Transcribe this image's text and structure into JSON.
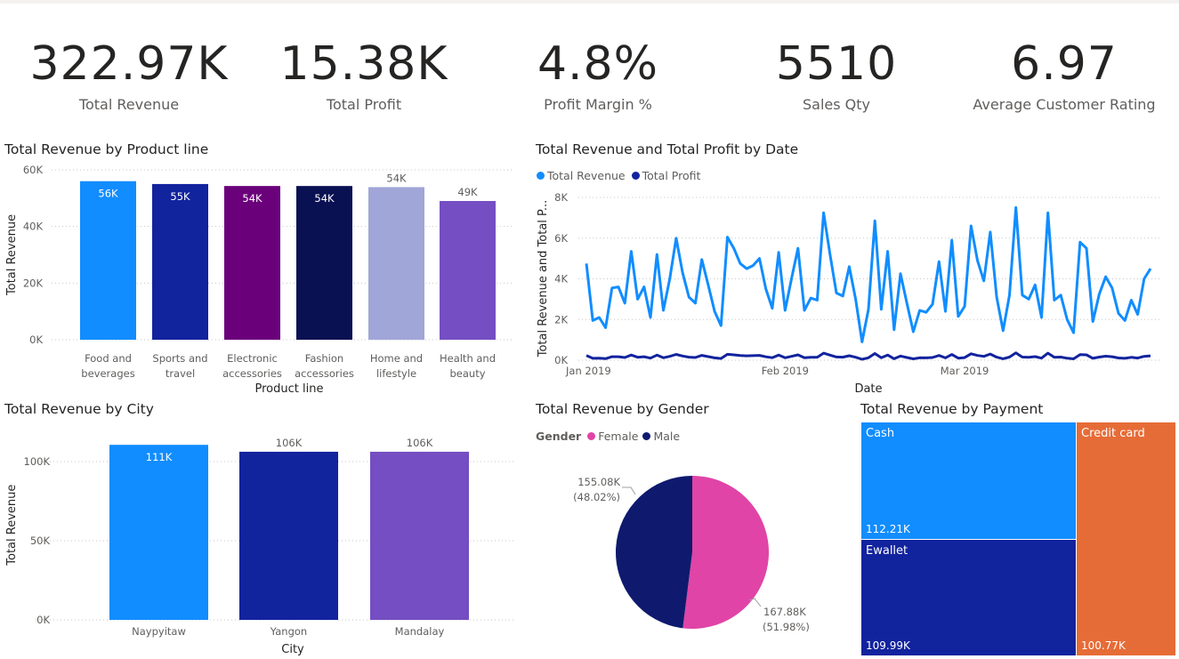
{
  "kpis": [
    {
      "value": "322.97K",
      "label": "Total Revenue"
    },
    {
      "value": "15.38K",
      "label": "Total Profit"
    },
    {
      "value": "4.8%",
      "label": "Profit Margin %"
    },
    {
      "value": "5510",
      "label": "Sales Qty"
    },
    {
      "value": "6.97",
      "label": "Average Customer Rating"
    }
  ],
  "chart_data": [
    {
      "id": "product",
      "type": "bar",
      "title": "Total Revenue by Product line",
      "xlabel": "Product line",
      "ylabel": "Total Revenue",
      "ylim": [
        0,
        60000
      ],
      "yticks": [
        "0K",
        "20K",
        "40K",
        "60K"
      ],
      "grid": true,
      "categories": [
        "Food and beverages",
        "Sports and travel",
        "Electronic accessories",
        "Fashion accessories",
        "Home and lifestyle",
        "Health and beauty"
      ],
      "values": [
        56000,
        55000,
        54300,
        54300,
        53900,
        49000
      ],
      "labels": [
        "56K",
        "55K",
        "54K",
        "54K",
        "54K",
        "49K"
      ],
      "colors": [
        "#118DFF",
        "#12239E",
        "#6B007B",
        "#0A1152",
        "#A1A6D8",
        "#744EC2"
      ]
    },
    {
      "id": "date",
      "type": "line",
      "title": "Total Revenue and Total Profit by Date",
      "xlabel": "Date",
      "ylabel": "Total Revenue and Total P...",
      "ylim": [
        0,
        8000
      ],
      "yticks": [
        "0K",
        "2K",
        "4K",
        "6K",
        "8K"
      ],
      "grid": true,
      "xticks": [
        {
          "date": "2019-01-01",
          "label": "Jan 2019"
        },
        {
          "date": "2019-02-01",
          "label": "Feb 2019"
        },
        {
          "date": "2019-03-01",
          "label": "Mar 2019"
        }
      ],
      "legend": "top-left",
      "x": [
        "2019-01-01",
        "2019-01-02",
        "2019-01-03",
        "2019-01-04",
        "2019-01-05",
        "2019-01-06",
        "2019-01-07",
        "2019-01-08",
        "2019-01-09",
        "2019-01-10",
        "2019-01-11",
        "2019-01-12",
        "2019-01-13",
        "2019-01-14",
        "2019-01-15",
        "2019-01-16",
        "2019-01-17",
        "2019-01-18",
        "2019-01-19",
        "2019-01-20",
        "2019-01-21",
        "2019-01-22",
        "2019-01-23",
        "2019-01-24",
        "2019-01-25",
        "2019-01-26",
        "2019-01-27",
        "2019-01-28",
        "2019-01-29",
        "2019-01-30",
        "2019-01-31",
        "2019-02-01",
        "2019-02-02",
        "2019-02-03",
        "2019-02-04",
        "2019-02-05",
        "2019-02-06",
        "2019-02-07",
        "2019-02-08",
        "2019-02-09",
        "2019-02-10",
        "2019-02-11",
        "2019-02-12",
        "2019-02-13",
        "2019-02-14",
        "2019-02-15",
        "2019-02-16",
        "2019-02-17",
        "2019-02-18",
        "2019-02-19",
        "2019-02-20",
        "2019-02-21",
        "2019-02-22",
        "2019-02-23",
        "2019-02-24",
        "2019-02-25",
        "2019-02-26",
        "2019-02-27",
        "2019-02-28",
        "2019-03-01",
        "2019-03-02",
        "2019-03-03",
        "2019-03-04",
        "2019-03-05",
        "2019-03-06",
        "2019-03-07",
        "2019-03-08",
        "2019-03-09",
        "2019-03-10",
        "2019-03-11",
        "2019-03-12",
        "2019-03-13",
        "2019-03-14",
        "2019-03-15",
        "2019-03-16",
        "2019-03-17",
        "2019-03-18",
        "2019-03-19",
        "2019-03-20",
        "2019-03-21",
        "2019-03-22",
        "2019-03-23",
        "2019-03-24",
        "2019-03-25",
        "2019-03-26",
        "2019-03-27",
        "2019-03-28",
        "2019-03-29",
        "2019-03-30"
      ],
      "series": [
        {
          "name": "Total Revenue",
          "color": "#118DFF",
          "values": [
            4750,
            1950,
            2100,
            1600,
            3550,
            3600,
            2800,
            5350,
            3000,
            3600,
            2100,
            5200,
            2450,
            4000,
            6000,
            4300,
            3100,
            2800,
            4950,
            3700,
            2400,
            1700,
            6050,
            5500,
            4750,
            4500,
            4650,
            5000,
            3500,
            2550,
            5300,
            2450,
            4000,
            5500,
            2450,
            3050,
            2950,
            7250,
            5200,
            3300,
            3150,
            4600,
            3000,
            900,
            2500,
            6850,
            2500,
            5350,
            1500,
            4250,
            2800,
            1400,
            2450,
            2350,
            2750,
            4850,
            2400,
            5900,
            2150,
            2650,
            6600,
            4900,
            3900,
            6300,
            3100,
            1450,
            3200,
            7500,
            3200,
            3000,
            3700,
            2100,
            7250,
            2950,
            3200,
            2000,
            1350,
            5800,
            5500,
            1900,
            3250,
            4100,
            3550,
            2300,
            1950,
            2950,
            2250,
            4000,
            4500
          ]
        },
        {
          "name": "Total Profit",
          "color": "#12239E",
          "values": [
            226,
            93,
            100,
            76,
            169,
            171,
            133,
            255,
            143,
            171,
            100,
            248,
            117,
            190,
            286,
            205,
            148,
            133,
            236,
            176,
            114,
            81,
            288,
            262,
            226,
            214,
            221,
            238,
            167,
            121,
            252,
            117,
            190,
            262,
            117,
            145,
            140,
            345,
            248,
            157,
            150,
            219,
            143,
            43,
            119,
            326,
            119,
            255,
            71,
            202,
            133,
            67,
            117,
            112,
            131,
            231,
            114,
            281,
            102,
            126,
            314,
            233,
            186,
            300,
            148,
            69,
            152,
            357,
            152,
            143,
            176,
            100,
            345,
            140,
            152,
            95,
            64,
            276,
            262,
            90,
            155,
            195,
            169,
            109,
            93,
            140,
            107,
            190,
            214
          ]
        }
      ]
    },
    {
      "id": "city",
      "type": "bar",
      "title": "Total Revenue by City",
      "xlabel": "City",
      "ylabel": "Total Revenue",
      "ylim": [
        0,
        120000
      ],
      "yticks": [
        "0K",
        "50K",
        "100K"
      ],
      "grid": true,
      "categories": [
        "Naypyitaw",
        "Yangon",
        "Mandalay"
      ],
      "values": [
        110570,
        106200,
        106200
      ],
      "labels": [
        "111K",
        "106K",
        "106K"
      ],
      "colors": [
        "#118DFF",
        "#12239E",
        "#744EC2"
      ]
    },
    {
      "id": "gender",
      "type": "pie",
      "title": "Total Revenue by Gender",
      "legend_title": "Gender",
      "categories": [
        "Female",
        "Male"
      ],
      "values": [
        167880,
        155080
      ],
      "labels": [
        "167.88K",
        "155.08K"
      ],
      "percents": [
        "(51.98%)",
        "(48.02%)"
      ],
      "colors": [
        "#E044A7",
        "#0F1A6E"
      ]
    },
    {
      "id": "payment",
      "type": "treemap",
      "title": "Total Revenue by Payment",
      "categories": [
        "Cash",
        "Ewallet",
        "Credit card"
      ],
      "values": [
        112210,
        109990,
        100770
      ],
      "labels": [
        "112.21K",
        "109.99K",
        "100.77K"
      ],
      "colors": [
        "#118DFF",
        "#12239E",
        "#E66C37"
      ]
    }
  ]
}
